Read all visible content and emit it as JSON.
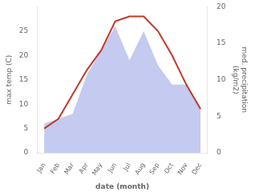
{
  "chart_data": {
    "type": "line",
    "categories": [
      "Jan",
      "Feb",
      "Mar",
      "Apr",
      "May",
      "Jun",
      "Jul",
      "Aug",
      "Sep",
      "Oct",
      "Nov",
      "Dec"
    ],
    "xlabel": "date (month)",
    "ylabel": "max temp (C)",
    "y2label": "med. precipitation\n(kg/m2)",
    "ylim": [
      0,
      30
    ],
    "yticks": [
      0,
      5,
      10,
      15,
      20,
      25
    ],
    "y2lim": [
      0,
      20
    ],
    "y2ticks": [
      0,
      5,
      10,
      15,
      20
    ],
    "grid": false,
    "series": [
      {
        "type": "area",
        "color": "#c5caf0",
        "values": [
          6,
          7,
          8,
          16,
          21,
          26,
          19,
          25,
          18,
          14,
          14,
          9
        ]
      },
      {
        "type": "line",
        "color": "#c0392b",
        "values": [
          5,
          7,
          12,
          17,
          21,
          27,
          28,
          28,
          25,
          20,
          14,
          9
        ]
      }
    ]
  }
}
